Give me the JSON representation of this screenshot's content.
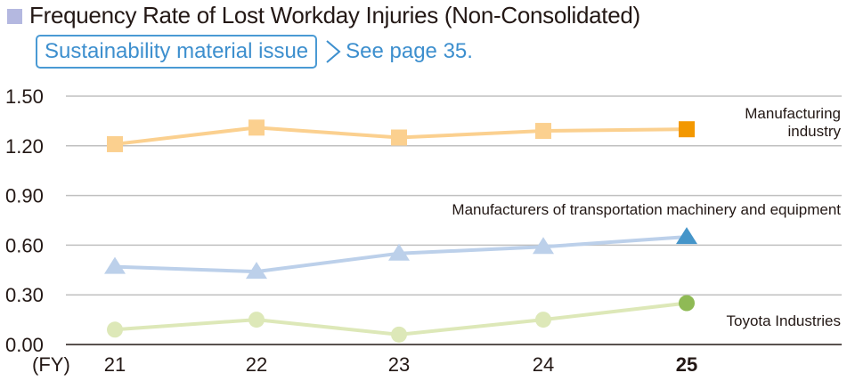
{
  "header": {
    "title": "Frequency Rate of Lost Workday Injuries (Non-Consolidated)",
    "badge_label": "Sustainability material issue",
    "link_label": "See page 35."
  },
  "colors": {
    "title_square": "#b4b8e0",
    "link_blue": "#3d8fce",
    "manufacturing_line": "#fbd08f",
    "manufacturing_last": "#f39800",
    "transport_line": "#bcd0ea",
    "transport_last": "#4595c9",
    "toyota_line": "#dde8b8",
    "toyota_last": "#8fba55",
    "grid": "#c0c0c0",
    "axis": "#231815"
  },
  "chart_data": {
    "type": "line",
    "title": "Frequency Rate of Lost Workday Injuries (Non-Consolidated)",
    "xlabel": "(FY)",
    "ylabel": "",
    "categories": [
      "21",
      "22",
      "23",
      "24",
      "25"
    ],
    "yticks": [
      "1.50",
      "1.20",
      "0.90",
      "0.60",
      "0.30",
      "0.00"
    ],
    "ylim": [
      0,
      1.5
    ],
    "grid": true,
    "legend_position": "inline annotations",
    "series": [
      {
        "name": "Manufacturing industry",
        "label_lines": [
          "Manufacturing",
          "industry"
        ],
        "marker": "square",
        "values": [
          1.21,
          1.31,
          1.25,
          1.29,
          1.3
        ]
      },
      {
        "name": "Manufacturers of transportation machinery and equipment",
        "label_lines": [
          "Manufacturers of transportation machinery and equipment"
        ],
        "marker": "triangle",
        "values": [
          0.47,
          0.44,
          0.55,
          0.59,
          0.65
        ]
      },
      {
        "name": "Toyota Industries",
        "label_lines": [
          "Toyota Industries"
        ],
        "marker": "circle",
        "values": [
          0.09,
          0.15,
          0.06,
          0.15,
          0.25
        ]
      }
    ]
  }
}
